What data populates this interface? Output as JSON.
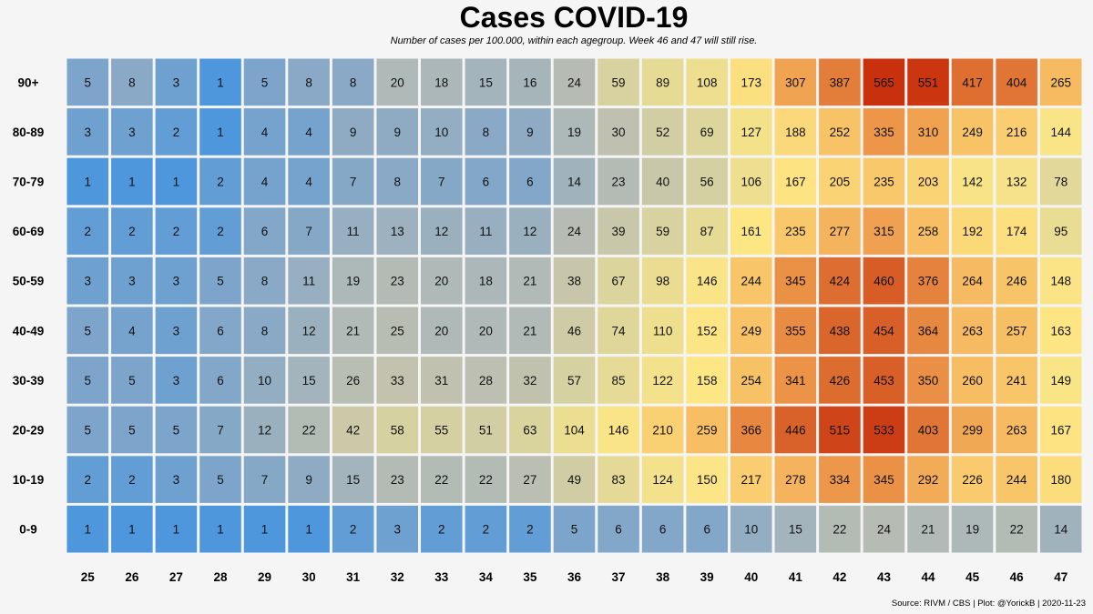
{
  "chart_data": {
    "type": "heatmap",
    "title": "Cases COVID-19",
    "subtitle": "Number of cases per 100.000, within each agegroup. Week 46 and 47 will still rise.",
    "xlabel": "",
    "ylabel": "",
    "x": [
      "25",
      "26",
      "27",
      "28",
      "29",
      "30",
      "31",
      "32",
      "33",
      "34",
      "35",
      "36",
      "37",
      "38",
      "39",
      "40",
      "41",
      "42",
      "43",
      "44",
      "45",
      "46",
      "47"
    ],
    "y": [
      "90+",
      "80-89",
      "70-79",
      "60-69",
      "50-59",
      "40-49",
      "30-39",
      "20-29",
      "10-19",
      "0-9"
    ],
    "values": [
      [
        5,
        8,
        3,
        1,
        5,
        8,
        8,
        20,
        18,
        15,
        16,
        24,
        59,
        89,
        108,
        173,
        307,
        387,
        565,
        551,
        417,
        404,
        265
      ],
      [
        3,
        3,
        2,
        1,
        4,
        4,
        9,
        9,
        10,
        8,
        9,
        19,
        30,
        52,
        69,
        127,
        188,
        252,
        335,
        310,
        249,
        216,
        144
      ],
      [
        1,
        1,
        1,
        2,
        4,
        4,
        7,
        8,
        7,
        6,
        6,
        14,
        23,
        40,
        56,
        106,
        167,
        205,
        235,
        203,
        142,
        132,
        78
      ],
      [
        2,
        2,
        2,
        2,
        6,
        7,
        11,
        13,
        12,
        11,
        12,
        24,
        39,
        59,
        87,
        161,
        235,
        277,
        315,
        258,
        192,
        174,
        95
      ],
      [
        3,
        3,
        3,
        5,
        8,
        11,
        19,
        23,
        20,
        18,
        21,
        38,
        67,
        98,
        146,
        244,
        345,
        424,
        460,
        376,
        264,
        246,
        148
      ],
      [
        5,
        4,
        3,
        6,
        8,
        12,
        21,
        25,
        20,
        20,
        21,
        46,
        74,
        110,
        152,
        249,
        355,
        438,
        454,
        364,
        263,
        257,
        163
      ],
      [
        5,
        5,
        3,
        6,
        10,
        15,
        26,
        33,
        31,
        28,
        32,
        57,
        85,
        122,
        158,
        254,
        341,
        426,
        453,
        350,
        260,
        241,
        149
      ],
      [
        5,
        5,
        5,
        7,
        12,
        22,
        42,
        58,
        55,
        51,
        63,
        104,
        146,
        210,
        259,
        366,
        446,
        515,
        533,
        403,
        299,
        263,
        167
      ],
      [
        2,
        2,
        3,
        5,
        7,
        9,
        15,
        23,
        22,
        22,
        27,
        49,
        83,
        124,
        150,
        217,
        278,
        334,
        345,
        292,
        226,
        244,
        180
      ],
      [
        1,
        1,
        1,
        1,
        1,
        1,
        2,
        3,
        2,
        2,
        2,
        5,
        6,
        6,
        6,
        10,
        15,
        22,
        24,
        21,
        19,
        22,
        14
      ]
    ],
    "color_scale": {
      "type": "log",
      "stops": [
        {
          "value": 1,
          "color": "#4f97dc"
        },
        {
          "value": 8,
          "color": "#8aa9c6"
        },
        {
          "value": 30,
          "color": "#bfc0b0"
        },
        {
          "value": 70,
          "color": "#ddd69c"
        },
        {
          "value": 160,
          "color": "#fde684"
        },
        {
          "value": 250,
          "color": "#f8c367"
        },
        {
          "value": 340,
          "color": "#ec9448"
        },
        {
          "value": 430,
          "color": "#dc6a2e"
        },
        {
          "value": 565,
          "color": "#c9310e"
        }
      ]
    },
    "legend": "none",
    "grid": false
  },
  "source": "Source: RIVM / CBS | Plot: @YorickB |  2020-11-23"
}
